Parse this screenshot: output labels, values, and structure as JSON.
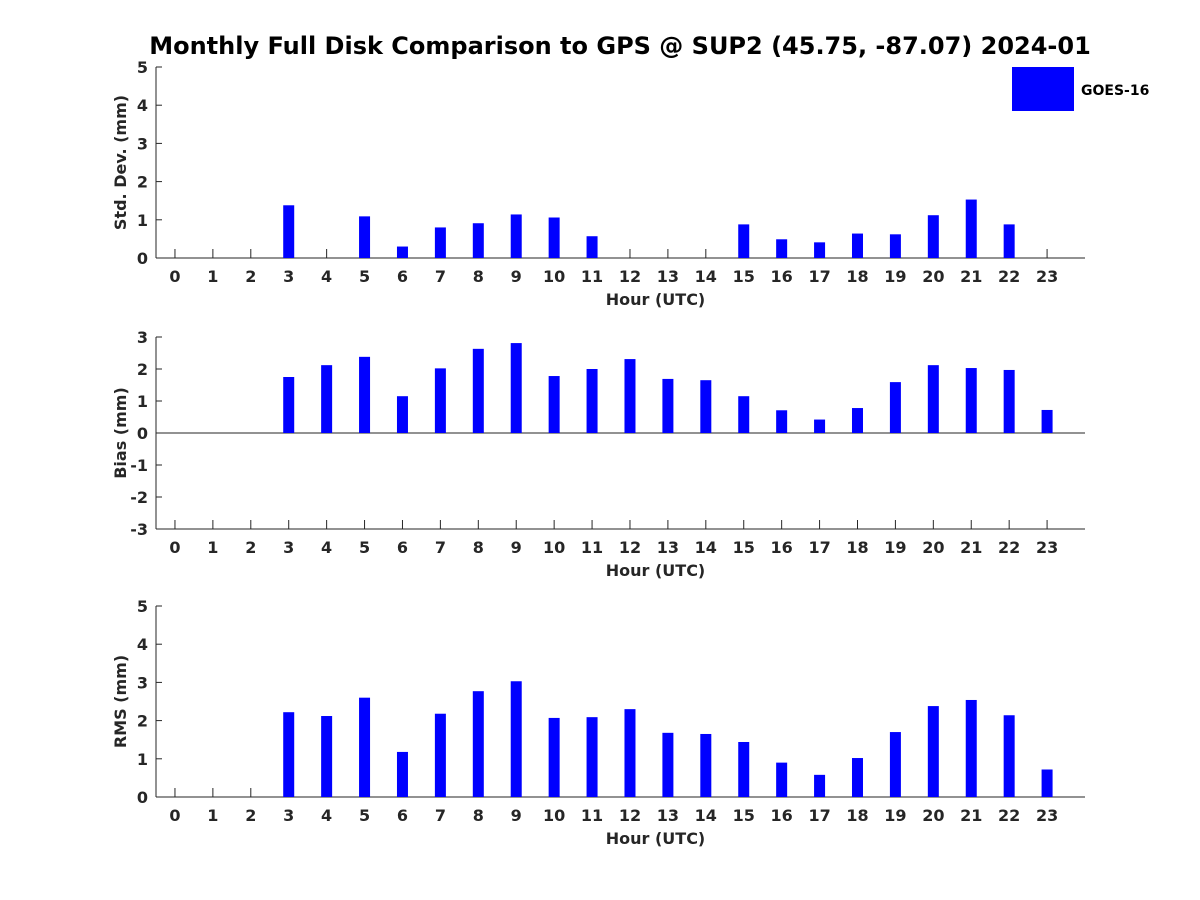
{
  "title": "Monthly Full Disk Comparison to GPS @ SUP2 (45.75, -87.07) 2024-01",
  "legend": {
    "label": "GOES-16",
    "placement": "top-right"
  },
  "colors": {
    "bar": "#0000ff",
    "axis": "#262626",
    "text": "#262626"
  },
  "chart_data": [
    {
      "type": "bar",
      "xlabel": "Hour (UTC)",
      "ylabel": "Std. Dev. (mm)",
      "ylim": [
        0,
        5
      ],
      "yticks": [
        "0",
        "1",
        "2",
        "3",
        "4",
        "5"
      ],
      "categories": [
        "0",
        "1",
        "2",
        "3",
        "4",
        "5",
        "6",
        "7",
        "8",
        "9",
        "10",
        "11",
        "12",
        "13",
        "14",
        "15",
        "16",
        "17",
        "18",
        "19",
        "20",
        "21",
        "22",
        "23"
      ],
      "series": [
        {
          "name": "GOES-16",
          "values": [
            null,
            null,
            null,
            1.38,
            null,
            1.09,
            0.3,
            0.8,
            0.91,
            1.14,
            1.06,
            0.57,
            null,
            null,
            null,
            0.88,
            0.49,
            0.41,
            0.64,
            0.62,
            1.12,
            1.53,
            0.88,
            null
          ]
        }
      ]
    },
    {
      "type": "bar",
      "xlabel": "Hour (UTC)",
      "ylabel": "Bias (mm)",
      "ylim": [
        -3,
        3
      ],
      "yticks": [
        "-3",
        "-2",
        "-1",
        "0",
        "1",
        "2",
        "3"
      ],
      "categories": [
        "0",
        "1",
        "2",
        "3",
        "4",
        "5",
        "6",
        "7",
        "8",
        "9",
        "10",
        "11",
        "12",
        "13",
        "14",
        "15",
        "16",
        "17",
        "18",
        "19",
        "20",
        "21",
        "22",
        "23"
      ],
      "series": [
        {
          "name": "GOES-16",
          "values": [
            null,
            null,
            null,
            1.75,
            2.12,
            2.38,
            1.15,
            2.02,
            2.63,
            2.81,
            1.78,
            2.0,
            2.31,
            1.69,
            1.65,
            1.15,
            0.71,
            0.42,
            0.78,
            1.59,
            2.12,
            2.03,
            1.97,
            0.72
          ]
        }
      ]
    },
    {
      "type": "bar",
      "xlabel": "Hour (UTC)",
      "ylabel": "RMS (mm)",
      "ylim": [
        0,
        5
      ],
      "yticks": [
        "0",
        "1",
        "2",
        "3",
        "4",
        "5"
      ],
      "categories": [
        "0",
        "1",
        "2",
        "3",
        "4",
        "5",
        "6",
        "7",
        "8",
        "9",
        "10",
        "11",
        "12",
        "13",
        "14",
        "15",
        "16",
        "17",
        "18",
        "19",
        "20",
        "21",
        "22",
        "23"
      ],
      "series": [
        {
          "name": "GOES-16",
          "values": [
            null,
            null,
            null,
            2.22,
            2.12,
            2.6,
            1.18,
            2.18,
            2.77,
            3.03,
            2.07,
            2.09,
            2.3,
            1.68,
            1.65,
            1.44,
            0.9,
            0.58,
            1.02,
            1.7,
            2.38,
            2.54,
            2.14,
            0.72
          ]
        }
      ]
    }
  ]
}
